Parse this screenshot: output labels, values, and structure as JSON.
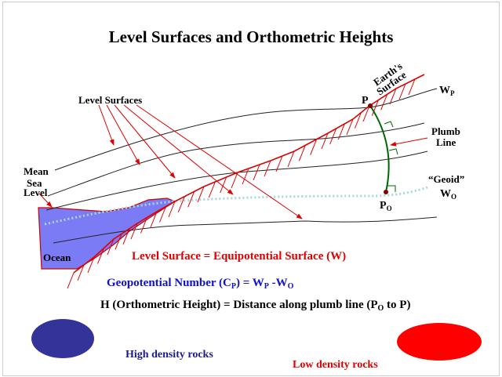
{
  "title": "Level Surfaces and Orthometric Heights",
  "labels": {
    "level_surfaces": "Level Surfaces",
    "mean": "Mean",
    "sea": "Sea",
    "level": "Level",
    "ocean": "Ocean",
    "earths": "Earth's",
    "surface": "Surface",
    "p": "P",
    "wp": "W",
    "wp_sub": "P",
    "plumb": "Plumb",
    "line": "Line",
    "geoid": "“Geoid”",
    "wo": "W",
    "wo_sub": "O",
    "po": "P",
    "po_sub": "O"
  },
  "equations": {
    "level_surface": "Level Surface = Equipotential Surface (W)",
    "geo_a": "Geopotential Number (C",
    "geo_sub_p": "P",
    "geo_b": ") = W",
    "geo_sub_p2": "P",
    "geo_c": " -W",
    "geo_sub_o": "O",
    "h_a": "H (Orthometric Height) = Distance along plumb line (P",
    "h_sub": "O",
    "h_b": " to P)"
  },
  "legend": {
    "high": "High density rocks",
    "low": "Low density rocks"
  },
  "colors": {
    "red": "#e00000",
    "blue": "#1010d0",
    "ocean": "#7b7bf5",
    "high_rock": "#333399",
    "low_rock": "#ff0000",
    "plumb": "#006600",
    "geoid": "#a8d8d8"
  }
}
